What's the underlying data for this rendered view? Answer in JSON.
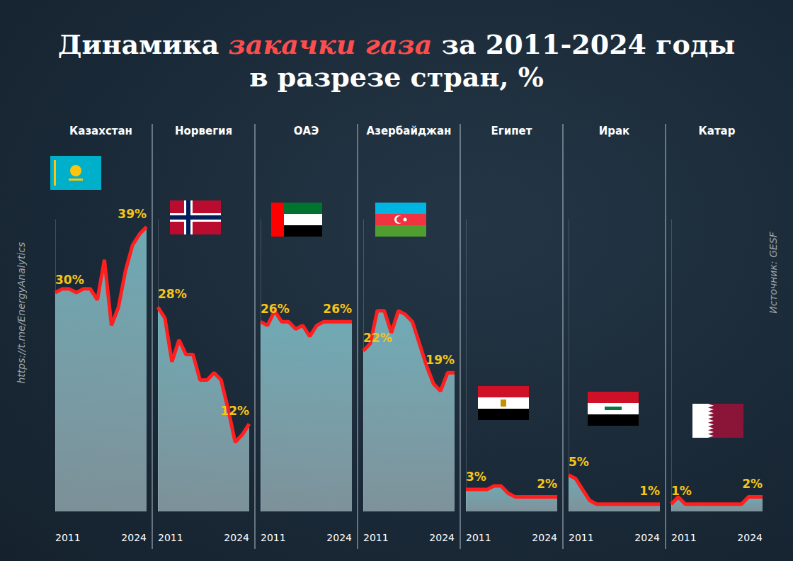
{
  "chart_data": {
    "type": "area",
    "title": "Динамика закачки газа за 2011-2024 годы\nв разрезе стран, %",
    "title_highlight": "закачки газа",
    "annotations": [
      "https://t.me/EnergyAnalytics",
      "Источник: GESF"
    ],
    "categories": [
      "2011",
      null,
      null,
      null,
      null,
      null,
      null,
      null,
      null,
      null,
      null,
      null,
      null,
      "2024"
    ],
    "ylim": [
      0,
      40
    ],
    "tick_labels": "x",
    "grid": false,
    "data_labels": true,
    "color": "#ff1f1f",
    "series": [
      {
        "name": "Казахстан",
        "values": [
          30,
          30.5,
          30.5,
          30,
          30.5,
          30.5,
          29,
          34.5,
          25.5,
          28,
          33,
          36.5,
          38,
          39
        ],
        "value_labels": [
          "30%",
          null,
          null,
          null,
          null,
          null,
          null,
          null,
          null,
          null,
          null,
          null,
          null,
          "39%"
        ]
      },
      {
        "name": "Норвегия",
        "values": [
          28,
          26.5,
          20.5,
          23.5,
          21.5,
          21.5,
          18,
          18,
          19,
          18,
          14,
          9.5,
          10.5,
          12
        ],
        "value_labels": [
          "28%",
          null,
          null,
          null,
          null,
          null,
          null,
          null,
          null,
          null,
          null,
          null,
          null,
          "12%"
        ]
      },
      {
        "name": "ОАЭ",
        "values": [
          26,
          25.5,
          27.5,
          26,
          26,
          25,
          25.5,
          24,
          25.5,
          26,
          26,
          26,
          26,
          26
        ],
        "value_labels": [
          "26%",
          null,
          null,
          null,
          null,
          null,
          null,
          null,
          null,
          null,
          null,
          null,
          null,
          "26%"
        ]
      },
      {
        "name": "Азербайджан",
        "values": [
          22,
          23,
          27.5,
          27.5,
          24.5,
          27.5,
          27,
          26,
          23,
          20,
          17.5,
          16.5,
          19,
          19
        ],
        "value_labels": [
          "22%",
          null,
          null,
          null,
          null,
          null,
          null,
          null,
          null,
          null,
          null,
          null,
          null,
          "19%"
        ]
      },
      {
        "name": "Египет",
        "values": [
          3,
          3,
          3,
          3,
          3.5,
          3.5,
          2.5,
          2,
          2,
          2,
          2,
          2,
          2,
          2
        ],
        "value_labels": [
          "3%",
          null,
          null,
          null,
          null,
          null,
          null,
          null,
          null,
          null,
          null,
          null,
          null,
          "2%"
        ]
      },
      {
        "name": "Ирак",
        "values": [
          5,
          4.5,
          3,
          1.5,
          1,
          1,
          1,
          1,
          1,
          1,
          1,
          1,
          1,
          1
        ],
        "value_labels": [
          "5%",
          null,
          null,
          null,
          null,
          null,
          null,
          null,
          null,
          null,
          null,
          null,
          null,
          "1%"
        ]
      },
      {
        "name": "Катар",
        "values": [
          1,
          2,
          1,
          1,
          1,
          1,
          1,
          1,
          1,
          1,
          1,
          2,
          2,
          2
        ],
        "value_labels": [
          "1%",
          null,
          null,
          null,
          null,
          null,
          null,
          null,
          null,
          null,
          null,
          null,
          null,
          "2%"
        ]
      }
    ]
  }
}
